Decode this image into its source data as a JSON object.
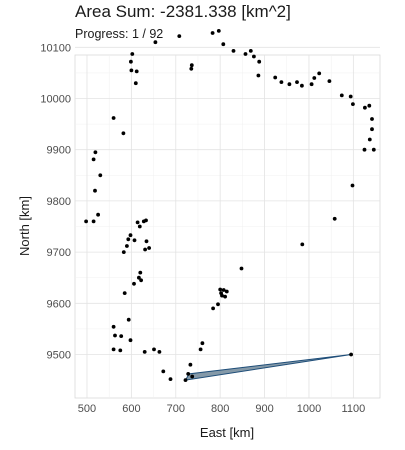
{
  "chart_data": {
    "type": "scatter",
    "title": "Area Sum: -2381.338 [km^2]",
    "subtitle": "Progress: 1 / 92",
    "xlabel": "East [km]",
    "ylabel": "North [km]",
    "xlim": [
      473,
      1160
    ],
    "ylim": [
      9415,
      10085
    ],
    "xticks": [
      500,
      600,
      700,
      800,
      900,
      1000,
      1100
    ],
    "yticks": [
      9500,
      9600,
      9700,
      9800,
      9900,
      10000,
      10100
    ],
    "grid": true,
    "points": [
      [
        736,
        10065
      ],
      [
        735,
        10058
      ],
      [
        708,
        10122
      ],
      [
        654,
        10110
      ],
      [
        783,
        10128
      ],
      [
        797,
        10132
      ],
      [
        807,
        10106
      ],
      [
        830,
        10093
      ],
      [
        857,
        10087
      ],
      [
        869,
        10093
      ],
      [
        876,
        10082
      ],
      [
        888,
        10072
      ],
      [
        886,
        10045
      ],
      [
        924,
        10041
      ],
      [
        938,
        10032
      ],
      [
        956,
        10028
      ],
      [
        973,
        10032
      ],
      [
        984,
        10025
      ],
      [
        1006,
        10028
      ],
      [
        1012,
        10040
      ],
      [
        1023,
        10049
      ],
      [
        1046,
        10034
      ],
      [
        1074,
        10006
      ],
      [
        1094,
        10004
      ],
      [
        1099,
        9989
      ],
      [
        1126,
        9982
      ],
      [
        1136,
        9986
      ],
      [
        1142,
        9960
      ],
      [
        1142,
        9940
      ],
      [
        1137,
        9920
      ],
      [
        1146,
        9900
      ],
      [
        1125,
        9900
      ],
      [
        1098,
        9830
      ],
      [
        1058,
        9765
      ],
      [
        985,
        9715
      ],
      [
        602,
        10087
      ],
      [
        599,
        10072
      ],
      [
        600,
        10055
      ],
      [
        612,
        10053
      ],
      [
        610,
        10030
      ],
      [
        582,
        9932
      ],
      [
        560,
        9962
      ],
      [
        519,
        9895
      ],
      [
        515,
        9881
      ],
      [
        530,
        9850
      ],
      [
        518,
        9820
      ],
      [
        525,
        9773
      ],
      [
        498,
        9760
      ],
      [
        515,
        9760
      ],
      [
        614,
        9758
      ],
      [
        628,
        9760
      ],
      [
        619,
        9750
      ],
      [
        633,
        9762
      ],
      [
        598,
        9733
      ],
      [
        593,
        9725
      ],
      [
        607,
        9723
      ],
      [
        634,
        9721
      ],
      [
        640,
        9708
      ],
      [
        631,
        9705
      ],
      [
        590,
        9712
      ],
      [
        583,
        9700
      ],
      [
        620,
        9660
      ],
      [
        617,
        9650
      ],
      [
        622,
        9645
      ],
      [
        606,
        9638
      ],
      [
        585,
        9620
      ],
      [
        848,
        9668
      ],
      [
        800,
        9627
      ],
      [
        808,
        9626
      ],
      [
        815,
        9623
      ],
      [
        802,
        9620
      ],
      [
        804,
        9615
      ],
      [
        811,
        9613
      ],
      [
        795,
        9598
      ],
      [
        784,
        9590
      ],
      [
        594,
        9568
      ],
      [
        560,
        9554
      ],
      [
        563,
        9537
      ],
      [
        577,
        9536
      ],
      [
        598,
        9528
      ],
      [
        560,
        9510
      ],
      [
        575,
        9508
      ],
      [
        630,
        9505
      ],
      [
        651,
        9510
      ],
      [
        663,
        9505
      ],
      [
        760,
        9522
      ],
      [
        756,
        9510
      ],
      [
        733,
        9480
      ],
      [
        728,
        9462
      ],
      [
        737,
        9457
      ],
      [
        672,
        9467
      ],
      [
        688,
        9452
      ],
      [
        722,
        9450
      ],
      [
        1095,
        9500
      ]
    ],
    "polygon": [
      [
        1095,
        9500
      ],
      [
        722,
        9450
      ],
      [
        730,
        9462
      ]
    ]
  }
}
